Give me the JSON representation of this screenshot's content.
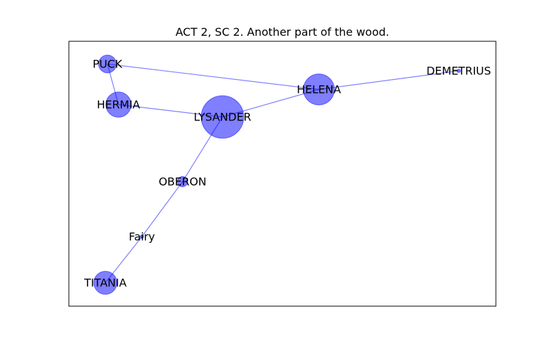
{
  "figure": {
    "title": "ACT 2, SC 2. Another part of the wood."
  },
  "graph": {
    "node_color": "#0000ff",
    "node_opacity": 0.5,
    "edge_color": "#0000ff",
    "edge_opacity": 0.5,
    "nodes": [
      {
        "id": "PUCK",
        "label": "PUCK",
        "weight": 3
      },
      {
        "id": "HERMIA",
        "label": "HERMIA",
        "weight": 6
      },
      {
        "id": "LYSANDER",
        "label": "LYSANDER",
        "weight": 17
      },
      {
        "id": "HELENA",
        "label": "HELENA",
        "weight": 9
      },
      {
        "id": "DEMETRIUS",
        "label": "DEMETRIUS",
        "weight": 0
      },
      {
        "id": "OBERON",
        "label": "OBERON",
        "weight": 1
      },
      {
        "id": "Fairy",
        "label": "Fairy",
        "weight": 0
      },
      {
        "id": "TITANIA",
        "label": "TITANIA",
        "weight": 5
      }
    ],
    "edges": [
      {
        "source": "PUCK",
        "target": "HERMIA"
      },
      {
        "source": "PUCK",
        "target": "HELENA"
      },
      {
        "source": "HERMIA",
        "target": "LYSANDER"
      },
      {
        "source": "LYSANDER",
        "target": "HELENA"
      },
      {
        "source": "HELENA",
        "target": "DEMETRIUS"
      },
      {
        "source": "LYSANDER",
        "target": "OBERON"
      },
      {
        "source": "OBERON",
        "target": "Fairy"
      },
      {
        "source": "Fairy",
        "target": "TITANIA"
      }
    ]
  }
}
